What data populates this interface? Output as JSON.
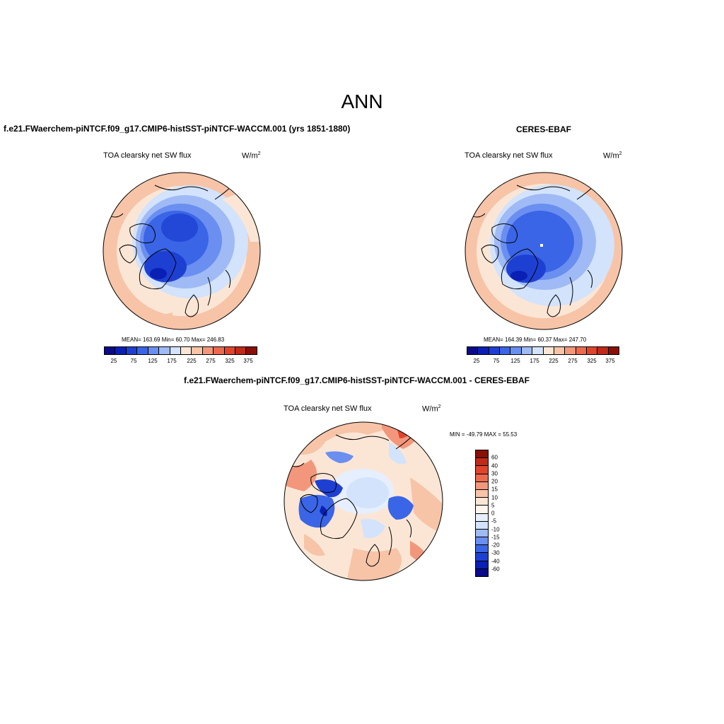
{
  "title": "ANN",
  "panels": {
    "model": {
      "case": "f.e21.FWaerchem-piNTCF.f09_g17.CMIP6-histSST-piNTCF-WACCM.001 (yrs 1851-1880)",
      "variable": "TOA clearsky net SW flux",
      "units_base": "W/m",
      "units_exp": "2",
      "stats": "MEAN= 163.69  Min=  60.70  Max= 246.83"
    },
    "obs": {
      "case": "CERES-EBAF",
      "variable": "TOA clearsky net SW flux",
      "units_base": "W/m",
      "units_exp": "2",
      "stats": "MEAN= 164.39  Min=  60.37  Max= 247.70"
    },
    "diff": {
      "case": "f.e21.FWaerchem-piNTCF.f09_g17.CMIP6-histSST-piNTCF-WACCM.001 - CERES-EBAF",
      "variable": "TOA clearsky net SW flux",
      "units_base": "W/m",
      "units_exp": "2",
      "stats": "MIN = -49.79 MAX =  55.53"
    }
  },
  "colorbar_abs": {
    "ticks": [
      "25",
      "75",
      "125",
      "175",
      "225",
      "275",
      "325",
      "375"
    ],
    "colors": [
      "#0a0a8a",
      "#0a1fb4",
      "#1e40d2",
      "#3a65e6",
      "#6a8ff0",
      "#9fbaf5",
      "#d2e3fb",
      "#fbe6d6",
      "#f7c4a8",
      "#f2977b",
      "#ec6a4e",
      "#e0452c",
      "#c02a18",
      "#8a0f06"
    ]
  },
  "colorbar_diff": {
    "ticks": [
      "60",
      "40",
      "30",
      "20",
      "15",
      "10",
      "5",
      "0",
      "-5",
      "-10",
      "-15",
      "-20",
      "-30",
      "-40",
      "-60"
    ],
    "colors": [
      "#8a0f06",
      "#c02a18",
      "#e0452c",
      "#ec6a4e",
      "#f2977b",
      "#f7c4a8",
      "#fbe6d6",
      "#fff5ec",
      "#e6efff",
      "#d2e3fb",
      "#9fbaf5",
      "#6a8ff0",
      "#3a65e6",
      "#1e40d2",
      "#0a1fb4",
      "#0a0a8a"
    ]
  },
  "chart_data": {
    "type": "heatmap",
    "projection": "north-polar-stereographic",
    "season": "ANN",
    "variable": "TOA clearsky net SW flux",
    "units": "W/m2",
    "maps": [
      {
        "name": "model",
        "mean": 163.69,
        "min": 60.7,
        "max": 246.83,
        "levels": [
          25,
          50,
          75,
          100,
          125,
          150,
          175,
          200,
          225,
          250,
          275,
          300,
          325,
          350,
          375
        ]
      },
      {
        "name": "CERES-EBAF",
        "mean": 164.39,
        "min": 60.37,
        "max": 247.7,
        "levels": [
          25,
          50,
          75,
          100,
          125,
          150,
          175,
          200,
          225,
          250,
          275,
          300,
          325,
          350,
          375
        ]
      },
      {
        "name": "model - CERES-EBAF",
        "min": -49.79,
        "max": 55.53,
        "levels": [
          -60,
          -40,
          -30,
          -20,
          -15,
          -10,
          -5,
          0,
          5,
          10,
          15,
          20,
          30,
          40,
          60
        ]
      }
    ]
  }
}
